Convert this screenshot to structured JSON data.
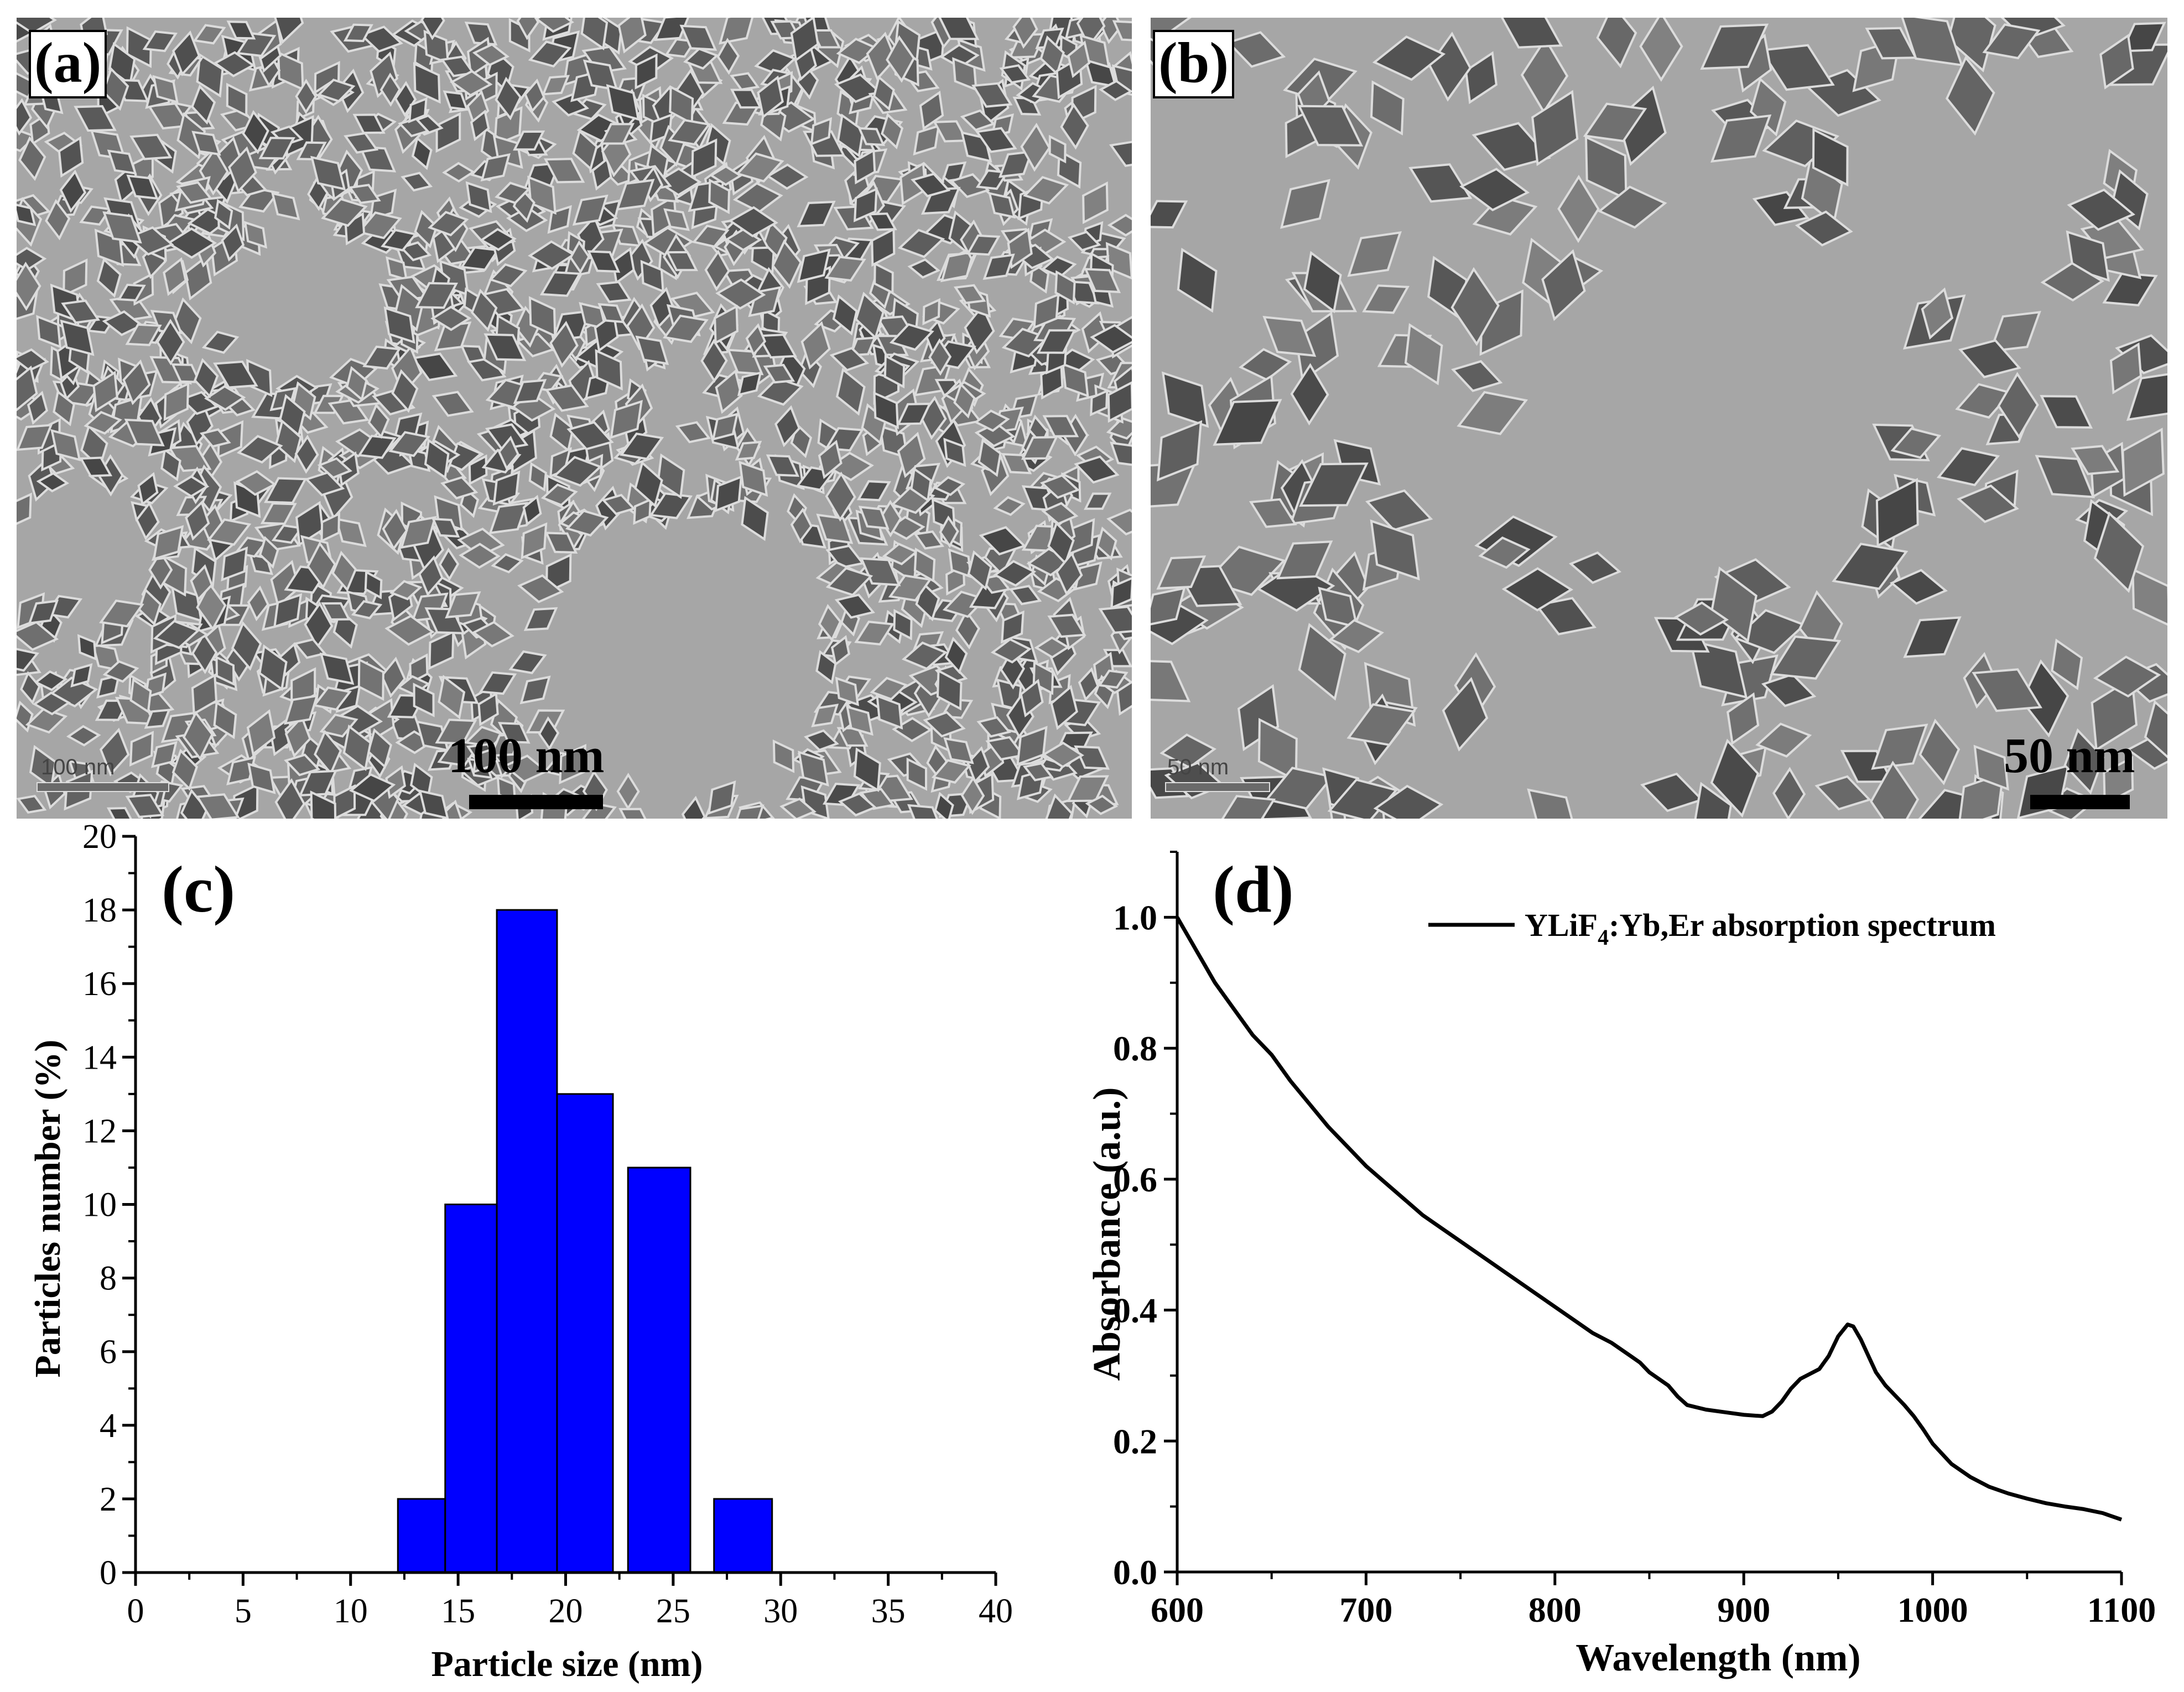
{
  "panel_a": {
    "label": "(a)",
    "scale_bar_text": "100 nm",
    "micrometer_text": "100 nm"
  },
  "panel_b": {
    "label": "(b)",
    "scale_bar_text": "50 nm",
    "micrometer_text": "50 nm"
  },
  "chart_data": [
    {
      "panel": "(c)",
      "type": "bar",
      "bar_color": "#0000ff",
      "xlabel": "Particle size (nm)",
      "ylabel": "Particles number (%)",
      "xlim": [
        0,
        40
      ],
      "ylim": [
        0,
        20
      ],
      "xticks": [
        "0",
        "5",
        "10",
        "15",
        "20",
        "25",
        "30",
        "35",
        "40"
      ],
      "yticks": [
        "0",
        "2",
        "4",
        "6",
        "8",
        "10",
        "12",
        "14",
        "16",
        "18",
        "20"
      ],
      "bins": [
        {
          "start": 12.2,
          "end": 14.4,
          "value": 2
        },
        {
          "start": 14.4,
          "end": 16.8,
          "value": 10
        },
        {
          "start": 16.8,
          "end": 19.6,
          "value": 18
        },
        {
          "start": 19.6,
          "end": 22.2,
          "value": 13
        },
        {
          "start": 22.9,
          "end": 25.8,
          "value": 11
        },
        {
          "start": 26.9,
          "end": 29.6,
          "value": 2
        }
      ]
    },
    {
      "panel": "(d)",
      "type": "line",
      "line_color": "#000000",
      "xlabel": "Wavelength (nm)",
      "ylabel": "Absorbance (a.u.)",
      "xlim": [
        600,
        1100
      ],
      "ylim": [
        0,
        1.1
      ],
      "xticks": [
        "600",
        "700",
        "800",
        "900",
        "1000",
        "1100"
      ],
      "yticks": [
        "0.0",
        "0.2",
        "0.4",
        "0.6",
        "0.8",
        "1.0"
      ],
      "legend": {
        "placement": "top-right",
        "text_main": "YLiF",
        "text_sub": "4",
        "text_rest": ":Yb,Er absorption spectrum"
      },
      "series": [
        {
          "x": [
            600,
            610,
            620,
            630,
            640,
            650,
            660,
            670,
            680,
            690,
            700,
            710,
            720,
            730,
            740,
            750,
            760,
            770,
            780,
            790,
            800,
            810,
            815,
            820,
            830,
            840,
            845,
            850,
            860,
            865,
            870,
            880,
            890,
            900,
            910,
            915,
            920,
            925,
            930,
            940,
            945,
            950,
            955,
            958,
            962,
            966,
            970,
            975,
            980,
            985,
            990,
            995,
            1000,
            1010,
            1020,
            1030,
            1040,
            1050,
            1060,
            1070,
            1080,
            1090,
            1100
          ],
          "y": [
            1.0,
            0.95,
            0.9,
            0.86,
            0.82,
            0.79,
            0.75,
            0.715,
            0.68,
            0.65,
            0.62,
            0.595,
            0.57,
            0.545,
            0.525,
            0.505,
            0.485,
            0.465,
            0.445,
            0.425,
            0.405,
            0.385,
            0.375,
            0.365,
            0.35,
            0.33,
            0.32,
            0.305,
            0.285,
            0.268,
            0.255,
            0.248,
            0.244,
            0.24,
            0.238,
            0.245,
            0.26,
            0.28,
            0.295,
            0.31,
            0.33,
            0.36,
            0.378,
            0.375,
            0.355,
            0.33,
            0.305,
            0.285,
            0.27,
            0.255,
            0.238,
            0.218,
            0.196,
            0.165,
            0.145,
            0.13,
            0.12,
            0.112,
            0.105,
            0.1,
            0.096,
            0.09,
            0.08
          ]
        }
      ]
    }
  ]
}
